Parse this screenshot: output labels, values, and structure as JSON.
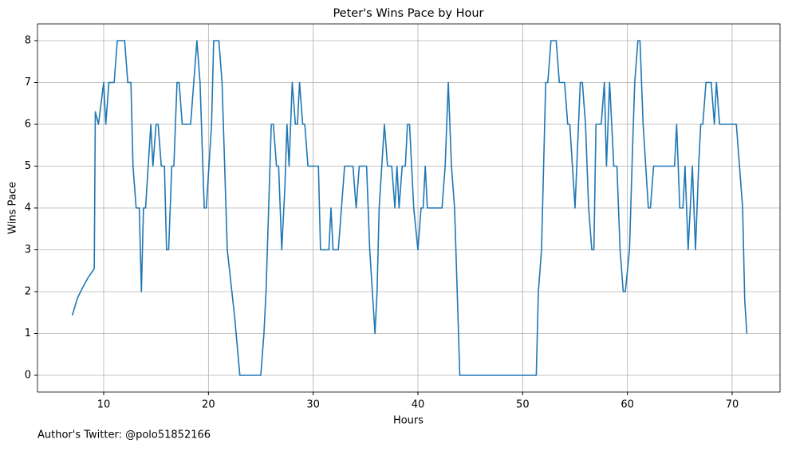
{
  "chart_data": {
    "type": "line",
    "title": "Peter's Wins Pace by Hour",
    "x_label": "Hours",
    "y_label": "Wins Pace",
    "annotation": "Author's Twitter: @polo51852166",
    "x": [
      7.0,
      7.5,
      8,
      8.5,
      9.1,
      9.2,
      9.5,
      10,
      10.2,
      10.5,
      11,
      11.3,
      12,
      12.3,
      12.6,
      12.8,
      13.1,
      13.4,
      13.6,
      13.8,
      14,
      14.5,
      14.7,
      15,
      15.2,
      15.5,
      15.8,
      16,
      16.2,
      16.5,
      16.7,
      17,
      17.2,
      17.5,
      18.3,
      18.9,
      19.2,
      19.6,
      19.8,
      20.3,
      20.5,
      21,
      21.3,
      21.8,
      22.5,
      23,
      25,
      25.3,
      25.5,
      26,
      26.2,
      26.5,
      26.7,
      27,
      27.3,
      27.5,
      27.7,
      28,
      28.3,
      28.5,
      28.7,
      29,
      29.2,
      29.5,
      30.5,
      30.7,
      31.5,
      31.7,
      31.9,
      32.4,
      33,
      33.8,
      34.1,
      34.4,
      35.1,
      35.4,
      35.9,
      36.1,
      36.3,
      36.8,
      37.1,
      37.5,
      37.8,
      38,
      38.2,
      38.5,
      38.8,
      39,
      39.2,
      39.6,
      40,
      40.3,
      40.5,
      40.7,
      40.9,
      42.3,
      42.6,
      42.9,
      43.2,
      43.5,
      44,
      51.3,
      51.5,
      51.8,
      52.2,
      52.4,
      52.7,
      53.2,
      53.5,
      54,
      54.3,
      54.5,
      55,
      55.5,
      55.7,
      56,
      56.3,
      56.6,
      56.8,
      57,
      57.5,
      57.8,
      58,
      58.3,
      58.7,
      59,
      59.3,
      59.6,
      59.8,
      60.2,
      60.5,
      60.7,
      61,
      61.2,
      61.5,
      62,
      62.2,
      62.5,
      64.5,
      64.7,
      65,
      65.3,
      65.5,
      65.8,
      66.2,
      66.5,
      66.8,
      67,
      67.2,
      67.5,
      68,
      68.3,
      68.5,
      68.8,
      70.4,
      71,
      71.2,
      71.4
    ],
    "values": [
      1.43,
      1.85,
      2.1,
      2.33,
      2.55,
      6.3,
      6.0,
      7,
      6.0,
      7,
      7,
      8,
      8,
      7,
      7,
      5,
      4,
      4,
      2,
      4,
      4,
      6,
      5,
      6,
      6,
      5,
      5,
      3,
      3,
      5,
      5,
      7,
      7,
      6,
      6,
      8,
      7,
      4,
      4,
      6,
      8,
      8,
      7,
      3,
      1.4,
      0,
      0,
      1,
      2,
      6,
      6,
      5,
      5,
      3,
      4.5,
      6,
      5,
      7,
      6,
      6,
      7,
      6,
      6,
      5,
      5,
      3,
      3,
      4,
      3,
      3,
      5,
      5,
      4,
      5,
      5,
      3,
      1,
      2,
      4,
      6,
      5,
      5,
      4,
      5,
      4,
      5,
      5,
      6,
      6,
      4,
      3,
      4,
      4,
      5,
      4,
      4,
      5,
      7,
      5,
      4,
      0,
      0,
      2,
      3,
      7,
      7,
      8,
      8,
      7,
      7,
      6,
      6,
      4,
      7,
      7,
      6,
      4,
      3,
      3,
      6,
      6,
      7,
      5,
      7,
      5,
      5,
      3,
      2,
      2,
      3,
      5.5,
      7,
      8,
      8,
      6,
      4,
      4,
      5,
      5,
      6,
      4,
      4,
      5,
      3,
      5,
      3,
      5,
      6,
      6,
      7,
      7,
      6,
      7,
      6,
      6,
      4,
      1.8,
      1
    ],
    "color": "#1f77b4",
    "xlim": [
      3.68,
      74.57
    ],
    "ylim": [
      -0.4,
      8.4
    ],
    "xticks": [
      10,
      20,
      30,
      40,
      50,
      60,
      70
    ],
    "yticks": [
      0,
      1,
      2,
      3,
      4,
      5,
      6,
      7,
      8
    ],
    "grid": true
  }
}
